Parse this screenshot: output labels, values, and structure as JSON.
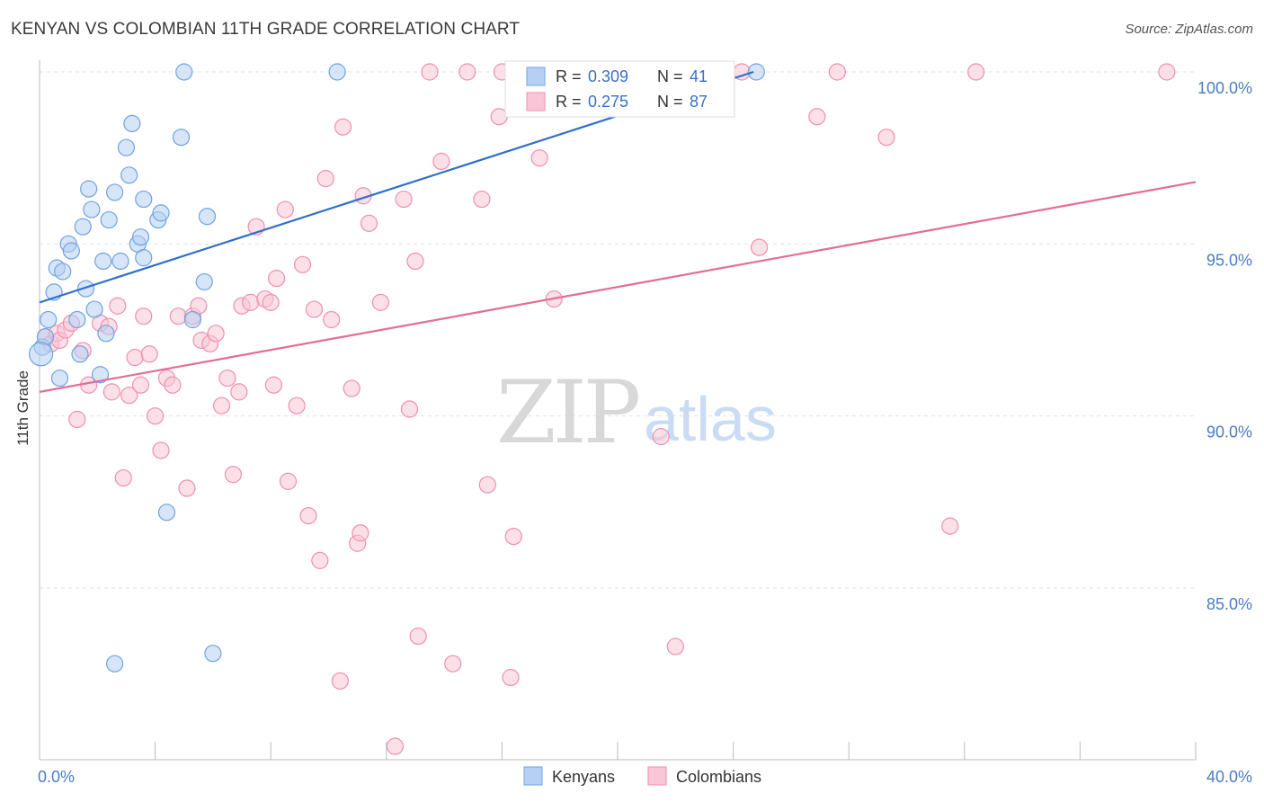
{
  "title": "KENYAN VS COLOMBIAN 11TH GRADE CORRELATION CHART",
  "source": "Source: ZipAtlas.com",
  "watermark": {
    "zip": "ZIP",
    "atlas": "atlas"
  },
  "chart_data": {
    "type": "scatter",
    "ylabel": "11th Grade",
    "xlim": [
      0,
      40
    ],
    "ylim": [
      80.4,
      100.7
    ],
    "x_tick_labels": [
      {
        "value": 0,
        "label": "0.0%"
      },
      {
        "value": 40,
        "label": "40.0%"
      }
    ],
    "y_tick_labels": [
      {
        "value": 100,
        "label": "100.0%"
      },
      {
        "value": 95,
        "label": "95.0%"
      },
      {
        "value": 90,
        "label": "90.0%"
      },
      {
        "value": 85,
        "label": "85.0%"
      }
    ],
    "grid": true,
    "legend_position": "top-center",
    "series": [
      {
        "name": "Kenyans",
        "color": "#6fa3e0",
        "fill": "#b5d0f2",
        "line_color": "#2f6fcb",
        "R_label": "R =",
        "R": "0.309",
        "N_label": "N =",
        "N": "41",
        "trend": {
          "x": [
            0,
            24.7
          ],
          "y": [
            93.3,
            100.0
          ]
        },
        "points": [
          [
            0.1,
            92.0
          ],
          [
            0.2,
            92.3
          ],
          [
            0.3,
            92.8
          ],
          [
            0.5,
            93.6
          ],
          [
            0.6,
            94.3
          ],
          [
            0.7,
            91.1
          ],
          [
            0.8,
            94.2
          ],
          [
            1.0,
            95.0
          ],
          [
            1.1,
            94.8
          ],
          [
            1.3,
            92.8
          ],
          [
            1.4,
            91.8
          ],
          [
            1.5,
            95.5
          ],
          [
            1.6,
            93.7
          ],
          [
            1.7,
            96.6
          ],
          [
            1.8,
            96.0
          ],
          [
            1.9,
            93.1
          ],
          [
            2.1,
            91.2
          ],
          [
            2.2,
            94.5
          ],
          [
            2.4,
            95.7
          ],
          [
            2.6,
            96.5
          ],
          [
            2.8,
            94.5
          ],
          [
            3.0,
            97.8
          ],
          [
            3.1,
            97.0
          ],
          [
            3.2,
            98.5
          ],
          [
            3.4,
            95.0
          ],
          [
            3.5,
            95.2
          ],
          [
            3.6,
            94.6
          ],
          [
            3.6,
            96.3
          ],
          [
            4.1,
            95.7
          ],
          [
            4.2,
            95.9
          ],
          [
            4.4,
            87.2
          ],
          [
            4.9,
            98.1
          ],
          [
            5.0,
            100.0
          ],
          [
            5.3,
            92.8
          ],
          [
            5.7,
            93.9
          ],
          [
            5.8,
            95.8
          ],
          [
            6.0,
            83.1
          ],
          [
            2.6,
            82.8
          ],
          [
            10.3,
            100.0
          ],
          [
            24.8,
            100.0
          ],
          [
            2.3,
            92.4
          ]
        ]
      },
      {
        "name": "Colombians",
        "color": "#f08fb0",
        "fill": "#f8c6d6",
        "line_color": "#e46c98",
        "R_label": "R =",
        "R": "0.275",
        "N_label": "N =",
        "N": "87",
        "trend": {
          "x": [
            0,
            40
          ],
          "y": [
            90.7,
            96.8
          ]
        },
        "points": [
          [
            0.2,
            92.3
          ],
          [
            0.4,
            92.1
          ],
          [
            0.6,
            92.4
          ],
          [
            0.7,
            92.2
          ],
          [
            0.9,
            92.5
          ],
          [
            1.1,
            92.7
          ],
          [
            1.3,
            89.9
          ],
          [
            1.5,
            91.9
          ],
          [
            1.7,
            90.9
          ],
          [
            2.1,
            92.7
          ],
          [
            2.4,
            92.6
          ],
          [
            2.5,
            90.7
          ],
          [
            2.7,
            93.2
          ],
          [
            2.9,
            88.2
          ],
          [
            3.1,
            90.6
          ],
          [
            3.3,
            91.7
          ],
          [
            3.5,
            90.9
          ],
          [
            3.6,
            92.9
          ],
          [
            3.8,
            91.8
          ],
          [
            4.0,
            90.0
          ],
          [
            4.2,
            89.0
          ],
          [
            4.4,
            91.1
          ],
          [
            4.6,
            90.9
          ],
          [
            4.8,
            92.9
          ],
          [
            5.1,
            87.9
          ],
          [
            5.3,
            92.9
          ],
          [
            5.5,
            93.2
          ],
          [
            5.6,
            92.2
          ],
          [
            5.9,
            92.1
          ],
          [
            6.1,
            92.4
          ],
          [
            6.3,
            90.3
          ],
          [
            6.5,
            91.1
          ],
          [
            6.7,
            88.3
          ],
          [
            6.9,
            90.7
          ],
          [
            7.0,
            93.2
          ],
          [
            7.3,
            93.3
          ],
          [
            7.5,
            95.5
          ],
          [
            7.8,
            93.4
          ],
          [
            8.0,
            93.3
          ],
          [
            8.1,
            90.9
          ],
          [
            8.2,
            94.0
          ],
          [
            8.5,
            96.0
          ],
          [
            8.6,
            88.1
          ],
          [
            8.9,
            90.3
          ],
          [
            9.1,
            94.4
          ],
          [
            9.3,
            87.1
          ],
          [
            9.5,
            93.1
          ],
          [
            9.7,
            85.8
          ],
          [
            9.9,
            96.9
          ],
          [
            10.1,
            92.8
          ],
          [
            10.4,
            82.3
          ],
          [
            10.5,
            98.4
          ],
          [
            10.8,
            90.8
          ],
          [
            11.0,
            86.3
          ],
          [
            11.1,
            86.6
          ],
          [
            11.2,
            96.4
          ],
          [
            11.4,
            95.6
          ],
          [
            11.8,
            93.3
          ],
          [
            12.3,
            80.4
          ],
          [
            12.6,
            96.3
          ],
          [
            12.8,
            90.2
          ],
          [
            13.0,
            94.5
          ],
          [
            13.1,
            83.6
          ],
          [
            13.5,
            100.0
          ],
          [
            13.9,
            97.4
          ],
          [
            14.3,
            82.8
          ],
          [
            14.8,
            100.0
          ],
          [
            15.3,
            96.3
          ],
          [
            15.5,
            88.0
          ],
          [
            15.9,
            98.7
          ],
          [
            16.3,
            82.4
          ],
          [
            16.4,
            86.5
          ],
          [
            17.3,
            97.5
          ],
          [
            17.8,
            93.4
          ],
          [
            19.0,
            100.0
          ],
          [
            19.6,
            100.0
          ],
          [
            21.5,
            89.4
          ],
          [
            22.0,
            83.3
          ],
          [
            24.3,
            100.0
          ],
          [
            24.9,
            94.9
          ],
          [
            26.9,
            98.7
          ],
          [
            27.6,
            100.0
          ],
          [
            29.3,
            98.1
          ],
          [
            31.5,
            86.8
          ],
          [
            32.4,
            100.0
          ],
          [
            39.0,
            100.0
          ],
          [
            16.0,
            100.0
          ]
        ]
      }
    ]
  }
}
